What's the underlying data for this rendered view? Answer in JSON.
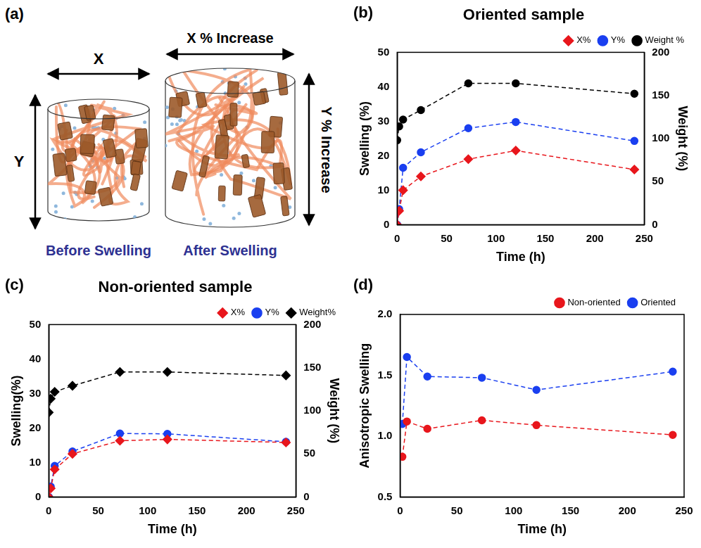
{
  "diagram": {
    "panel": "(a)",
    "before": {
      "label": "Before Swelling",
      "width_label": "X",
      "height_label": "Y"
    },
    "after": {
      "label": "After Swelling",
      "width_label": "X % Increase",
      "height_label": "Y % Increase"
    }
  },
  "chart_data": [
    {
      "type": "line",
      "panel": "(b)",
      "title": "Oriented sample",
      "xlabel": "Time (h)",
      "ylabel": "Swelling (%)",
      "y2label": "Weight (%)",
      "x": [
        0,
        2,
        6,
        24,
        72,
        120,
        240
      ],
      "xlim": [
        0,
        250
      ],
      "xticks": [
        0,
        50,
        100,
        150,
        200,
        250
      ],
      "ylim": [
        0,
        50
      ],
      "yticks": [
        0,
        10,
        20,
        30,
        40,
        50
      ],
      "y2lim": [
        0,
        200
      ],
      "y2ticks": [
        0,
        50,
        100,
        150,
        200
      ],
      "grid": false,
      "legend": "upper right",
      "series": [
        {
          "name": "X%",
          "color": "#e8161c",
          "marker": "diamond",
          "line_style": "dashed",
          "values": [
            0,
            4,
            10,
            14,
            19,
            21.5,
            16
          ]
        },
        {
          "name": "Y%",
          "color": "#1a3ff0",
          "marker": "circle",
          "line_style": "dashed",
          "values": [
            0,
            4.5,
            16.5,
            21,
            28,
            29.8,
            24.3
          ]
        },
        {
          "name": "Weight %",
          "color": "#000000",
          "marker": "circle",
          "line_style": "dashed",
          "axis": "y2",
          "values": [
            98,
            114,
            122,
            133,
            164,
            164,
            152
          ]
        }
      ]
    },
    {
      "type": "line",
      "panel": "(c)",
      "title": "Non-oriented sample",
      "xlabel": "Time (h)",
      "ylabel": "Swelling(%)",
      "y2label": "Weight (%)",
      "x": [
        0,
        2,
        6,
        24,
        72,
        120,
        240
      ],
      "xlim": [
        0,
        250
      ],
      "xticks": [
        0,
        50,
        100,
        150,
        200,
        250
      ],
      "ylim": [
        0,
        50
      ],
      "yticks": [
        0,
        10,
        20,
        30,
        40,
        50
      ],
      "y2lim": [
        0,
        200
      ],
      "y2ticks": [
        0,
        50,
        100,
        150,
        200
      ],
      "grid": false,
      "legend": "upper right",
      "series": [
        {
          "name": "X%",
          "color": "#e8161c",
          "marker": "diamond",
          "line_style": "dashed",
          "values": [
            0,
            2.5,
            8,
            12.5,
            16.3,
            16.7,
            15.8
          ]
        },
        {
          "name": "Y%",
          "color": "#1a3ff0",
          "marker": "circle",
          "line_style": "dashed",
          "values": [
            0,
            3,
            9,
            13.2,
            18.4,
            18.3,
            16
          ]
        },
        {
          "name": "Weight%",
          "color": "#000000",
          "marker": "diamond",
          "line_style": "dashed",
          "axis": "y2",
          "values": [
            98,
            114,
            122,
            129,
            145,
            145,
            141
          ]
        }
      ]
    },
    {
      "type": "line",
      "panel": "(d)",
      "xlabel": "Time (h)",
      "ylabel": "Anisotropic Swelling",
      "x": [
        2,
        6,
        24,
        72,
        120,
        240
      ],
      "xlim": [
        0,
        250
      ],
      "xticks": [
        0,
        50,
        100,
        150,
        200,
        250
      ],
      "ylim": [
        0.5,
        2.0
      ],
      "yticks": [
        0.5,
        {
          "value": 1,
          "label": "1.0"
        },
        1.5,
        {
          "value": 2,
          "label": "2.0"
        }
      ],
      "grid": false,
      "legend": "upper right",
      "series": [
        {
          "name": "Non-oriented",
          "color": "#e8161c",
          "marker": "circle",
          "line_style": "dashed",
          "values": [
            0.83,
            1.12,
            1.06,
            1.13,
            1.09,
            1.01
          ]
        },
        {
          "name": "Oriented",
          "color": "#1a3ff0",
          "marker": "circle",
          "line_style": "dashed",
          "values": [
            1.1,
            1.65,
            1.49,
            1.48,
            1.38,
            1.53
          ]
        }
      ]
    }
  ]
}
